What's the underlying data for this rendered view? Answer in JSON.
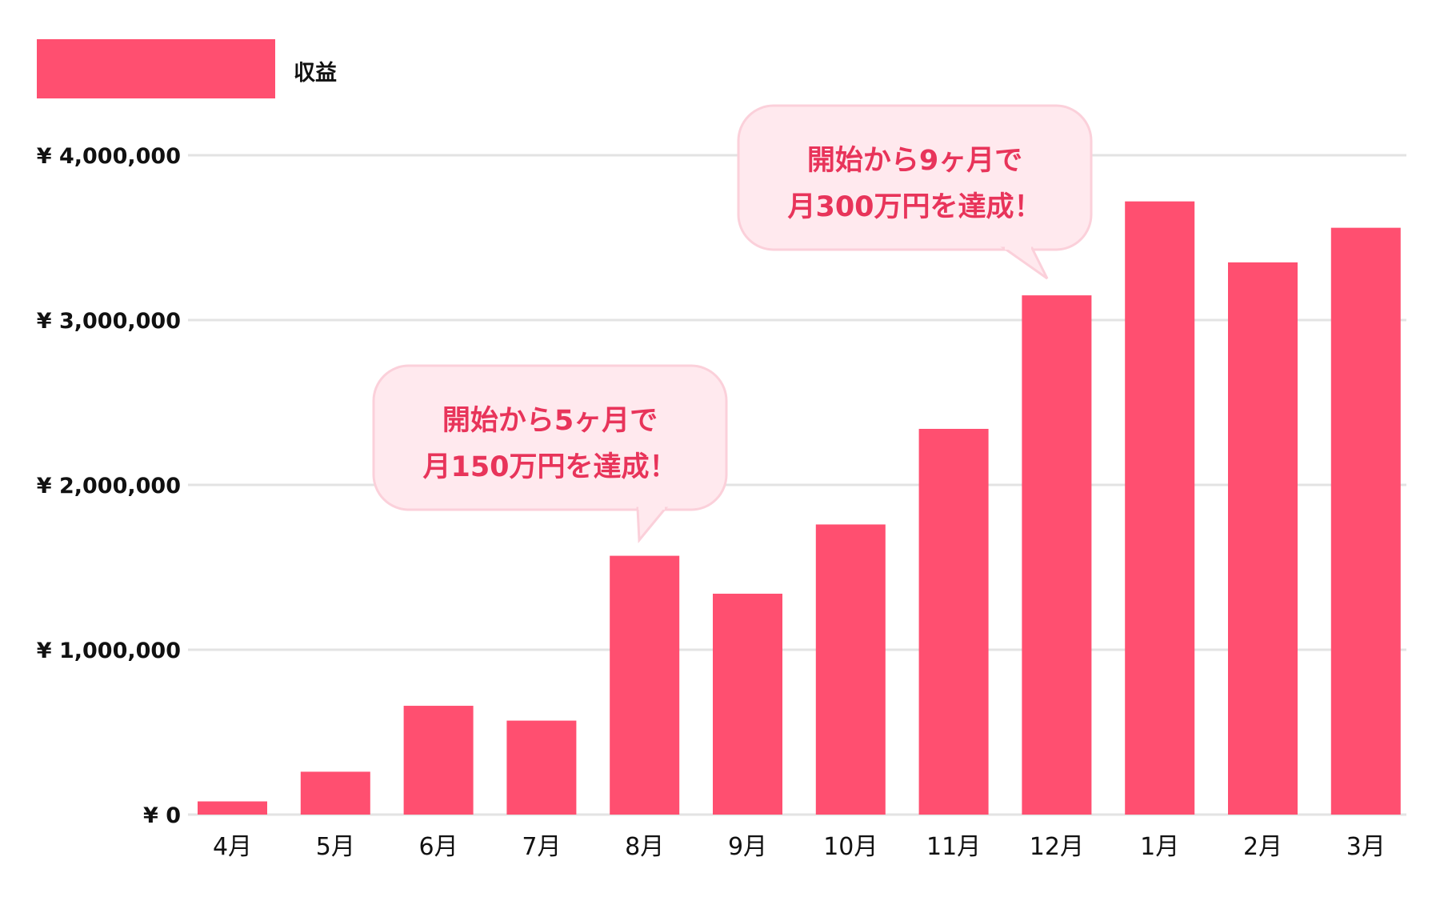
{
  "chart_data": {
    "type": "bar",
    "title": "",
    "xlabel": "",
    "ylabel": "",
    "legend": {
      "label": "収益",
      "position": "top-left"
    },
    "categories": [
      "4月",
      "5月",
      "6月",
      "7月",
      "8月",
      "9月",
      "10月",
      "11月",
      "12月",
      "1月",
      "2月",
      "3月"
    ],
    "series": [
      {
        "name": "収益",
        "values": [
          80000,
          260000,
          660000,
          570000,
          1570000,
          1340000,
          1760000,
          2340000,
          3150000,
          3720000,
          3350000,
          3560000
        ]
      }
    ],
    "ylim": [
      0,
      4000000
    ],
    "yticks": [
      0,
      1000000,
      2000000,
      3000000,
      4000000
    ],
    "ytick_labels": [
      "¥ 0",
      "¥ 1,000,000",
      "¥ 2,000,000",
      "¥ 3,000,000",
      "¥ 4,000,000"
    ],
    "grid": true,
    "annotations": [
      {
        "category": "8月",
        "lines": [
          "開始から5ヶ月で",
          "月150万円を達成！"
        ]
      },
      {
        "category": "12月",
        "lines": [
          "開始から9ヶ月で",
          "月300万円を達成！"
        ]
      }
    ]
  },
  "colors": {
    "bar": "#ff4f70",
    "grid": "#e3e3e3",
    "bubble_bg": "#ffe9ee",
    "bubble_border": "#fbd0da",
    "bubble_text": "#e8345a"
  }
}
